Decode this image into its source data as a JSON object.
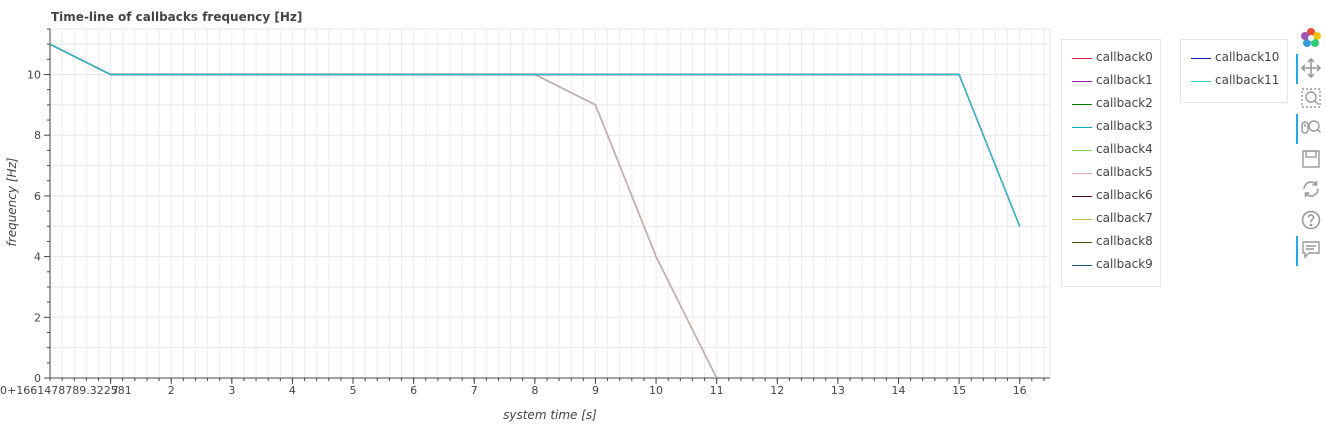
{
  "chart_data": {
    "type": "line",
    "title": "Time-line of callbacks frequency [Hz]",
    "xlabel": "system time [s]",
    "ylabel": "frequency [Hz]",
    "xlim": [
      0,
      16.5
    ],
    "ylim": [
      0,
      11.5
    ],
    "x_offset_label": "0+1661478789.322581",
    "x_first_tick_label": "7",
    "xticks": [
      2,
      3,
      4,
      5,
      6,
      7,
      8,
      9,
      10,
      11,
      12,
      13,
      14,
      15,
      16
    ],
    "yticks": [
      0,
      2,
      4,
      6,
      8,
      10
    ],
    "grid": true,
    "legend_position": "right",
    "series": [
      {
        "name": "callback0",
        "color": "#e6194b",
        "x": [
          0,
          1,
          8,
          9,
          10,
          11
        ],
        "y": [
          11,
          10,
          10,
          9,
          4,
          0
        ]
      },
      {
        "name": "callback1",
        "color": "#911eb4",
        "x": [
          0,
          1,
          8,
          9,
          10,
          11
        ],
        "y": [
          11,
          10,
          10,
          9,
          4,
          0
        ]
      },
      {
        "name": "callback2",
        "color": "#008000",
        "x": [
          0,
          1,
          8,
          9,
          10,
          11
        ],
        "y": [
          11,
          10,
          10,
          9,
          4,
          0
        ]
      },
      {
        "name": "callback3",
        "color": "#10a7a7",
        "x": [
          0,
          1,
          8,
          9,
          10,
          11
        ],
        "y": [
          11,
          10,
          10,
          9,
          4,
          0
        ]
      },
      {
        "name": "callback4",
        "color": "#8fd450",
        "x": [
          0,
          1,
          8,
          9,
          10,
          11
        ],
        "y": [
          11,
          10,
          10,
          9,
          4,
          0
        ]
      },
      {
        "name": "callback5",
        "color": "#dca5c6",
        "x": [
          0,
          1,
          8,
          9,
          10,
          11
        ],
        "y": [
          11,
          10,
          10,
          9,
          4,
          0
        ]
      },
      {
        "name": "callback6",
        "color": "#5a0a3c",
        "x": [
          0,
          1,
          15,
          16
        ],
        "y": [
          11,
          10,
          10,
          5
        ]
      },
      {
        "name": "callback7",
        "color": "#c2b94a",
        "x": [
          0,
          1,
          15,
          16
        ],
        "y": [
          11,
          10,
          10,
          5
        ]
      },
      {
        "name": "callback8",
        "color": "#4d4d1a",
        "x": [
          0,
          1,
          15,
          16
        ],
        "y": [
          11,
          10,
          10,
          5
        ]
      },
      {
        "name": "callback9",
        "color": "#1f5a7a",
        "x": [
          0,
          1,
          15,
          16
        ],
        "y": [
          11,
          10,
          10,
          5
        ]
      },
      {
        "name": "callback10",
        "color": "#1a1ab3",
        "x": [
          0,
          1,
          15,
          16
        ],
        "y": [
          11,
          10,
          10,
          5
        ]
      },
      {
        "name": "callback11",
        "color": "#33d6d6",
        "x": [
          0,
          1,
          15,
          16
        ],
        "y": [
          11,
          10,
          10,
          5
        ]
      }
    ]
  },
  "toolbar": {
    "tools": [
      {
        "name": "bokeh-logo",
        "icon": "bokeh-logo-icon",
        "active": false
      },
      {
        "name": "pan-tool",
        "icon": "pan-icon",
        "active": true
      },
      {
        "name": "box-zoom-tool",
        "icon": "box-zoom-icon",
        "active": false
      },
      {
        "name": "wheel-zoom-tool",
        "icon": "wheel-zoom-icon",
        "active": true
      },
      {
        "name": "save-tool",
        "icon": "save-icon",
        "active": false
      },
      {
        "name": "reset-tool",
        "icon": "reset-icon",
        "active": false
      },
      {
        "name": "help-tool",
        "icon": "help-icon",
        "active": false
      },
      {
        "name": "hover-tool",
        "icon": "hover-icon",
        "active": true
      }
    ]
  }
}
